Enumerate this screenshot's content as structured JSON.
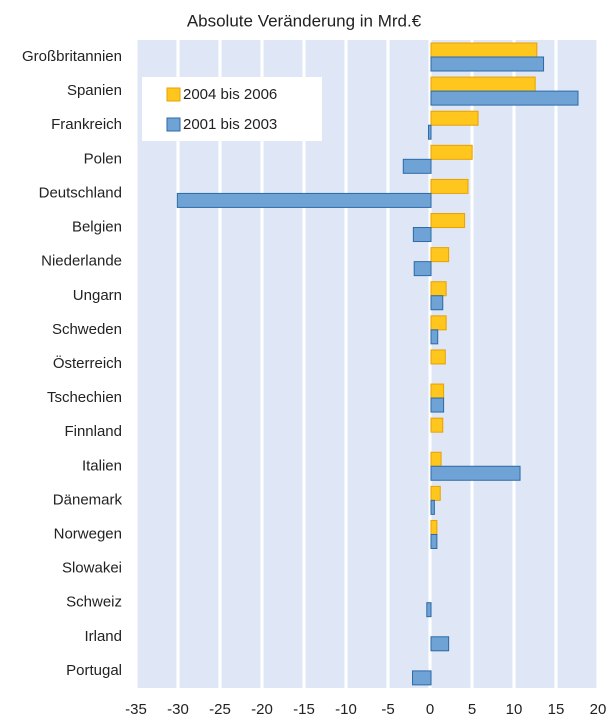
{
  "chart_data": {
    "type": "bar",
    "orientation": "horizontal",
    "title": "Absolute Veränderung in Mrd.€",
    "categories": [
      "Großbritannien",
      "Spanien",
      "Frankreich",
      "Polen",
      "Deutschland",
      "Belgien",
      "Niederlande",
      "Ungarn",
      "Schweden",
      "Österreich",
      "Tschechien",
      "Finnland",
      "Italien",
      "Dänemark",
      "Norwegen",
      "Slowakei",
      "Schweiz",
      "Irland",
      "Portugal"
    ],
    "series": [
      {
        "name": "2004 bis 2006",
        "color": "#ffc61e",
        "values": [
          12.6,
          12.4,
          5.6,
          4.9,
          4.4,
          4.0,
          2.1,
          1.8,
          1.8,
          1.7,
          1.5,
          1.4,
          1.2,
          1.1,
          0.7,
          null,
          null,
          null,
          null
        ]
      },
      {
        "name": "2001 bis 2003",
        "color": "#6fa3d6",
        "values": [
          13.4,
          17.5,
          -0.3,
          -3.3,
          -30.2,
          -2.1,
          -2.0,
          1.4,
          0.8,
          null,
          1.5,
          null,
          10.6,
          0.4,
          0.7,
          null,
          -0.5,
          2.1,
          -2.2
        ]
      }
    ],
    "xlim": [
      -35,
      20
    ],
    "xticks": [
      -35,
      -30,
      -25,
      -20,
      -15,
      -10,
      -5,
      0,
      5,
      10,
      15,
      20
    ],
    "grid": true,
    "legend": "upper left"
  }
}
